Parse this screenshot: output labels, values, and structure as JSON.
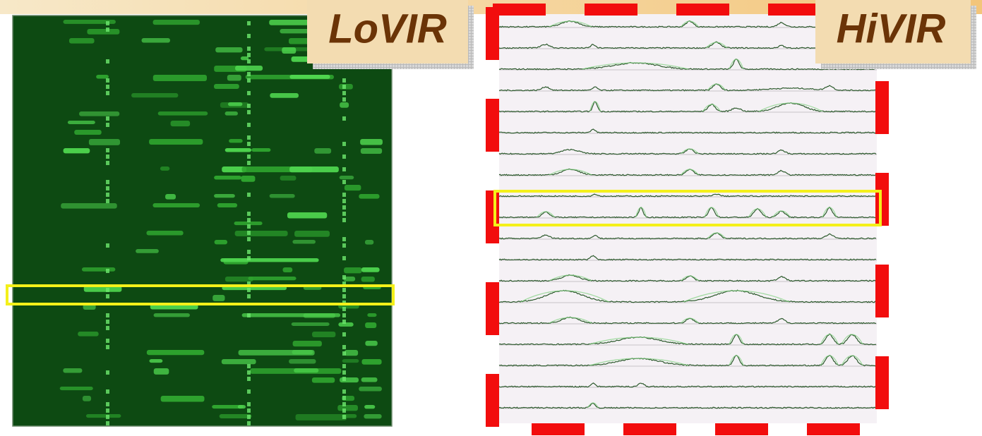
{
  "labels": {
    "left": "LoVIR",
    "right": "HiVIR"
  }
}
